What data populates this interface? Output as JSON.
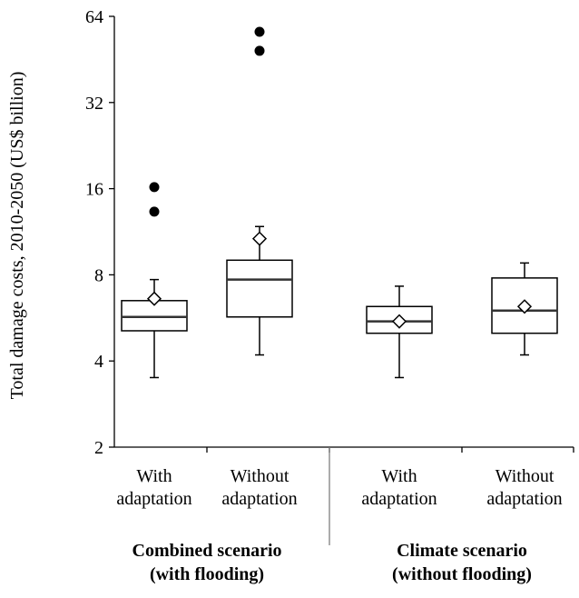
{
  "chart_data": {
    "type": "box",
    "title": "",
    "ylabel": "Total damage costs, 2010-2050 (US$ billion)",
    "xlabel": "",
    "y_scale": "log2",
    "ylim": [
      2,
      64
    ],
    "y_ticks": [
      2,
      4,
      8,
      16,
      32,
      64
    ],
    "y_tick_labels": [
      "2",
      "4",
      "8",
      "16",
      "32",
      "64"
    ],
    "grid": false,
    "legend": "none",
    "colors": {
      "line": "#000000",
      "box_fill": "#ffffff",
      "outlier": "#000000",
      "mean_marker_fill": "#ffffff"
    },
    "groups": [
      {
        "label_lines": [
          "Combined scenario",
          "(with flooding)"
        ]
      },
      {
        "label_lines": [
          "Climate scenario",
          "(without flooding)"
        ]
      }
    ],
    "categories": [
      {
        "group": 0,
        "label_lines": [
          "With",
          "adaptation"
        ],
        "whisker_low": 3.5,
        "q1": 5.1,
        "median": 5.7,
        "q3": 6.5,
        "whisker_high": 7.7,
        "mean": 6.6,
        "outliers": [
          13.3,
          16.2
        ]
      },
      {
        "group": 0,
        "label_lines": [
          "Without",
          "adaptation"
        ],
        "whisker_low": 4.2,
        "q1": 5.7,
        "median": 7.7,
        "q3": 9.0,
        "whisker_high": 11.8,
        "mean": 10.7,
        "outliers": [
          48.5,
          56.5
        ]
      },
      {
        "group": 1,
        "label_lines": [
          "With",
          "adaptation"
        ],
        "whisker_low": 3.5,
        "q1": 5.0,
        "median": 5.5,
        "q3": 6.2,
        "whisker_high": 7.3,
        "mean": 5.5,
        "outliers": []
      },
      {
        "group": 1,
        "label_lines": [
          "Without",
          "adaptation"
        ],
        "whisker_low": 4.2,
        "q1": 5.0,
        "median": 6.0,
        "q3": 7.8,
        "whisker_high": 8.8,
        "mean": 6.2,
        "outliers": []
      }
    ]
  }
}
